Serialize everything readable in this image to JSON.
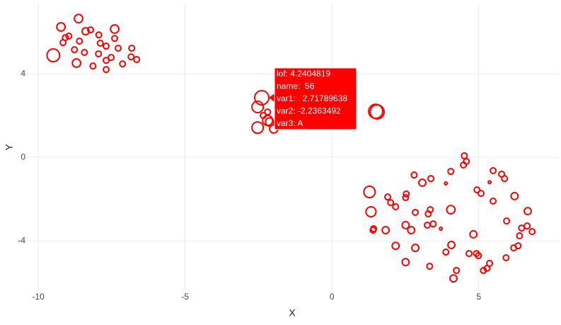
{
  "chart_data": {
    "type": "scatter",
    "x_label": "X",
    "y_label": "Y",
    "color": "#ff0000",
    "grid": true,
    "xlim": [
      -10.39,
      7.73
    ],
    "ylim": [
      -6.37,
      7.36
    ],
    "xticks": [
      -10,
      -5,
      0,
      5
    ],
    "yticks": [
      -4,
      0,
      4
    ],
    "x": [
      -8.63,
      -9.23,
      -7.4,
      -8.39,
      -8.22,
      -8.96,
      -9.08,
      -7.94,
      -7.4,
      -9.16,
      -8.6,
      -7.89,
      -7.69,
      -6.82,
      -7.28,
      -8.77,
      -8.43,
      -7.95,
      -9.49,
      -7.52,
      -6.84,
      -6.65,
      -7.69,
      -8.7,
      -8.14,
      -7.13,
      -7.69,
      -2.39,
      -2.53,
      -2.19,
      -2.34,
      -2.19,
      -2.12,
      -2.53,
      -1.98,
      1.54,
      1.49,
      4.51,
      4.58,
      4.48,
      5.49,
      5.78,
      4.05,
      2.8,
      3.37,
      5.88,
      3.08,
      3.88,
      5.37,
      4.94,
      5.08,
      1.28,
      2.53,
      2.51,
      1.9,
      6.22,
      2.0,
      5.49,
      2.17,
      4.05,
      3.35,
      2.84,
      1.33,
      6.67,
      3.28,
      5.95,
      2.51,
      3.25,
      3.45,
      6.65,
      6.46,
      3.71,
      2.7,
      1.42,
      1.4,
      1.83,
      6.82,
      4.82,
      6.39,
      4.07,
      2.17,
      6.34,
      6.19,
      2.84,
      3.88,
      4.67,
      4.92,
      4.99,
      5.93,
      2.51,
      5.37,
      3.33,
      5.28,
      5.16,
      4.24,
      4.14
    ],
    "values": [
      6.64,
      6.24,
      6.14,
      6.03,
      6.1,
      5.8,
      5.73,
      5.86,
      5.69,
      5.49,
      5.56,
      5.46,
      5.32,
      5.22,
      5.22,
      5.15,
      5.02,
      4.95,
      4.88,
      4.78,
      4.81,
      4.68,
      4.64,
      4.51,
      4.37,
      4.47,
      4.2,
      2.85,
      2.41,
      2.17,
      2.0,
      1.76,
      1.69,
      1.42,
      1.36,
      2.17,
      2.2,
      0.07,
      -0.2,
      -0.37,
      -0.64,
      -0.81,
      -0.68,
      -0.85,
      -1.02,
      -1.02,
      -1.22,
      -1.25,
      -1.19,
      -1.56,
      -1.73,
      -1.66,
      -1.76,
      -1.93,
      -1.9,
      -1.86,
      -2.17,
      -2.1,
      -2.37,
      -2.51,
      -2.51,
      -2.64,
      -2.61,
      -2.58,
      -2.71,
      -3.05,
      -3.25,
      -3.25,
      -3.19,
      -3.29,
      -3.39,
      -3.42,
      -3.49,
      -3.42,
      -3.49,
      -3.49,
      -3.56,
      -3.69,
      -3.76,
      -4.2,
      -4.24,
      -4.24,
      -4.34,
      -4.34,
      -4.54,
      -4.61,
      -4.61,
      -4.71,
      -4.81,
      -5.02,
      -5.08,
      -5.22,
      -5.32,
      -5.42,
      -5.42,
      -5.8
    ],
    "sizes": [
      2.5,
      2.5,
      2.5,
      2.1,
      1.7,
      1.7,
      1.7,
      1.7,
      1.7,
      1.7,
      1.7,
      1.7,
      1.7,
      1.7,
      1.7,
      1.7,
      1.7,
      1.7,
      3.8,
      1.7,
      1.7,
      1.7,
      1.7,
      2.5,
      1.7,
      1.7,
      1.7,
      4.24,
      3.4,
      1.7,
      1.7,
      3.0,
      2.5,
      3.4,
      2.5,
      4.2,
      4.2,
      1.7,
      1.7,
      1.7,
      1.7,
      1.7,
      1.7,
      1.7,
      1.7,
      1.7,
      2.1,
      0.85,
      0.85,
      1.7,
      1.7,
      3.4,
      1.7,
      1.7,
      1.7,
      2.1,
      1.7,
      1.7,
      1.7,
      2.5,
      1.7,
      1.7,
      3.0,
      2.1,
      1.7,
      1.7,
      2.1,
      1.7,
      1.7,
      1.7,
      1.7,
      0.85,
      2.1,
      1.7,
      1.7,
      2.1,
      1.7,
      2.1,
      1.7,
      2.1,
      2.1,
      1.7,
      1.7,
      2.1,
      1.7,
      1.7,
      1.7,
      1.7,
      1.7,
      2.1,
      1.7,
      1.7,
      1.7,
      1.7,
      1.7,
      2.1
    ],
    "tooltip": {
      "lines": [
        "lof: 4.2404819",
        "name:  56",
        "var1:   2.71789638",
        "var2: -2.2363492",
        "var3: A"
      ]
    }
  }
}
